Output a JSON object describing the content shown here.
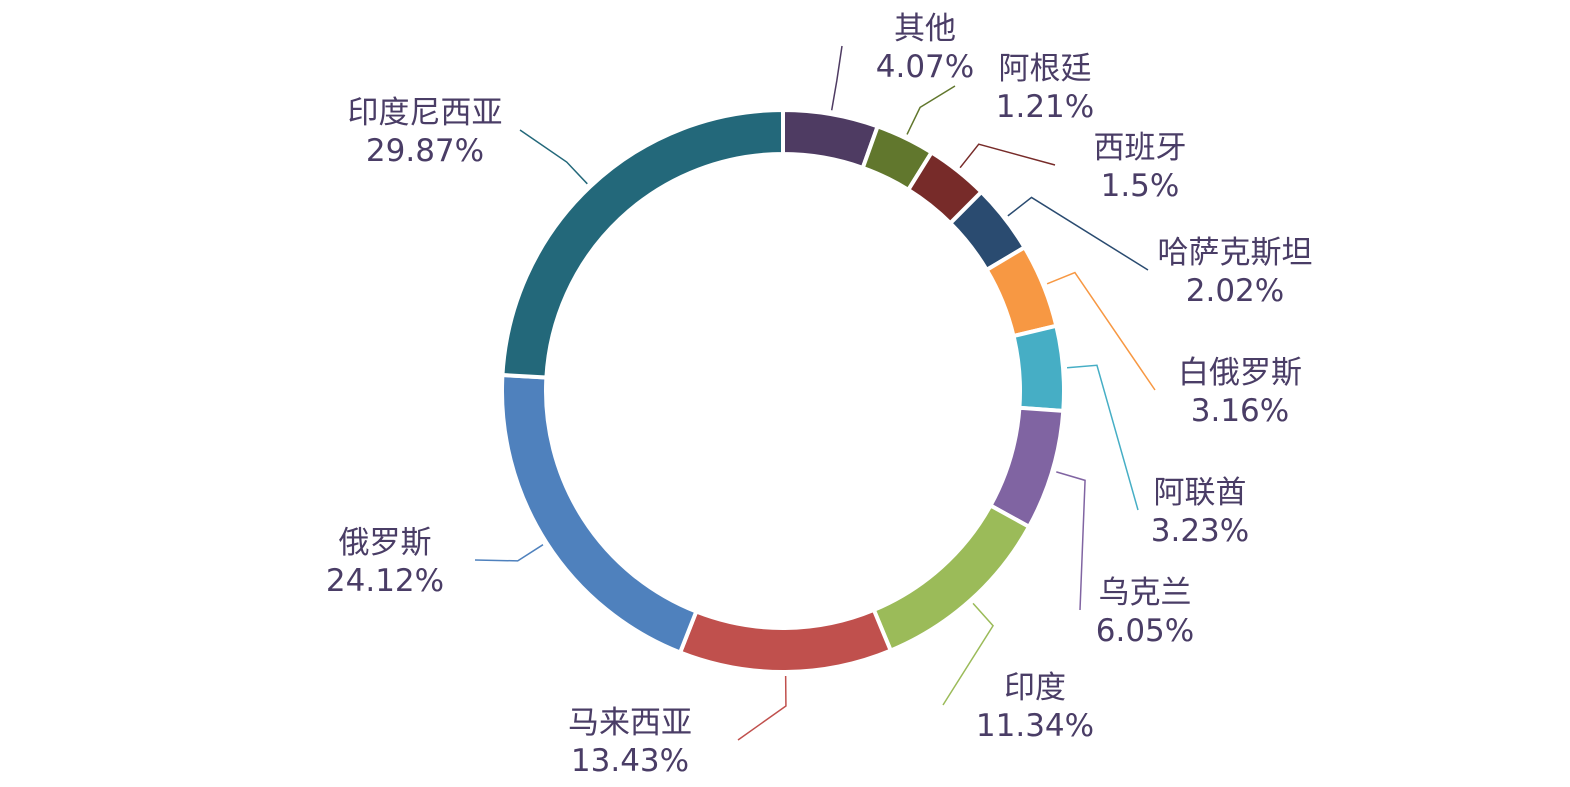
{
  "chart_data": {
    "type": "pie",
    "style": "donut",
    "title": "",
    "slices": [
      {
        "label": "其他",
        "value": 4.07,
        "display": "4.07%",
        "color": "#4e3b62"
      },
      {
        "label": "阿根廷",
        "value": 1.21,
        "display": "1.21%",
        "color": "#61772d"
      },
      {
        "label": "西班牙",
        "value": 1.5,
        "display": "1.5%",
        "color": "#772b29"
      },
      {
        "label": "哈萨克斯坦",
        "value": 2.02,
        "display": "2.02%",
        "color": "#2a4b70"
      },
      {
        "label": "白俄罗斯",
        "value": 3.16,
        "display": "3.16%",
        "color": "#f79843"
      },
      {
        "label": "阿联酋",
        "value": 3.23,
        "display": "3.23%",
        "color": "#46aec5"
      },
      {
        "label": "乌克兰",
        "value": 6.05,
        "display": "6.05%",
        "color": "#8064a2"
      },
      {
        "label": "印度",
        "value": 11.34,
        "display": "11.34%",
        "color": "#9bbb59"
      },
      {
        "label": "马来西亚",
        "value": 13.43,
        "display": "13.43%",
        "color": "#c0504d"
      },
      {
        "label": "俄罗斯",
        "value": 24.12,
        "display": "24.12%",
        "color": "#4f81bd"
      },
      {
        "label": "印度尼西亚",
        "value": 29.87,
        "display": "29.87%",
        "color": "#23687a"
      }
    ]
  }
}
